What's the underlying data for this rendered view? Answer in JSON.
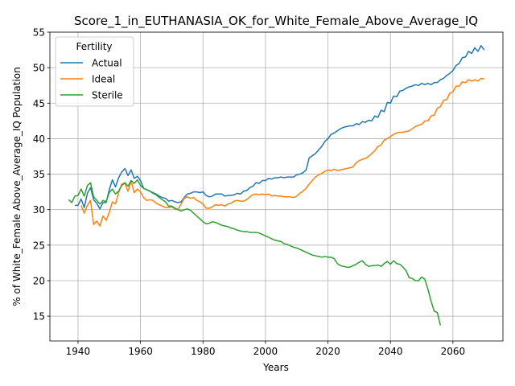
{
  "chart_data": {
    "type": "line",
    "title": "Score_1_in_EUTHANASIA_OK_for_White_Female_Above_Average_IQ",
    "xlabel": "Years",
    "ylabel": "% of White_Female Above_Average_IQ Population",
    "xlim": [
      1931,
      2076
    ],
    "ylim": [
      11.5,
      55
    ],
    "xticks": [
      1940,
      1960,
      1980,
      2000,
      2020,
      2040,
      2060
    ],
    "yticks": [
      15,
      20,
      25,
      30,
      35,
      40,
      45,
      50,
      55
    ],
    "grid": true,
    "legend": {
      "title": "Fertility",
      "placement": "upper-left"
    },
    "series": [
      {
        "name": "Actual",
        "color": "#1f77b4",
        "x": [
          1939,
          1940,
          1941,
          1942,
          1943,
          1944,
          1945,
          1946,
          1947,
          1948,
          1949,
          1950,
          1951,
          1952,
          1953,
          1954,
          1955,
          1956,
          1957,
          1958,
          1959,
          1960,
          1961,
          1962,
          1963,
          1964,
          1965,
          1966,
          1967,
          1968,
          1969,
          1970,
          1971,
          1972,
          1973,
          1974,
          1975,
          1976,
          1977,
          1978,
          1979,
          1980,
          1981,
          1982,
          1983,
          1984,
          1985,
          1986,
          1987,
          1988,
          1989,
          1990,
          1991,
          1992,
          1993,
          1994,
          1995,
          1996,
          1997,
          1998,
          1999,
          2000,
          2001,
          2002,
          2003,
          2004,
          2005,
          2006,
          2007,
          2008,
          2009,
          2010,
          2011,
          2012,
          2013,
          2014,
          2015,
          2016,
          2017,
          2018,
          2019,
          2020,
          2021,
          2022,
          2023,
          2024,
          2025,
          2026,
          2027,
          2028,
          2029,
          2030,
          2031,
          2032,
          2033,
          2034,
          2035,
          2036,
          2037,
          2038,
          2039,
          2040,
          2041,
          2042,
          2043,
          2044,
          2045,
          2046,
          2047,
          2048,
          2049,
          2050,
          2051,
          2052,
          2053,
          2054,
          2055,
          2056,
          2057,
          2058,
          2059,
          2060,
          2061,
          2062,
          2063,
          2064,
          2065,
          2066,
          2067,
          2068,
          2069,
          2070
        ],
        "values": [
          30.6,
          30.6,
          31.5,
          30.3,
          32.3,
          33.1,
          31.4,
          30.9,
          30.1,
          31.0,
          31.0,
          32.8,
          34.2,
          33.2,
          34.5,
          35.3,
          35.8,
          34.8,
          35.6,
          34.4,
          34.7,
          34.1,
          33.0,
          32.8,
          32.6,
          32.4,
          32.2,
          31.9,
          31.7,
          31.6,
          31.2,
          31.3,
          31.1,
          31.0,
          31.1,
          31.7,
          32.2,
          32.3,
          32.5,
          32.5,
          32.4,
          32.5,
          32.0,
          31.8,
          31.9,
          32.2,
          32.2,
          32.2,
          31.9,
          32.0,
          32.0,
          32.1,
          32.3,
          32.2,
          32.6,
          32.7,
          33.1,
          33.3,
          33.8,
          33.7,
          34.1,
          34.1,
          34.4,
          34.3,
          34.5,
          34.5,
          34.6,
          34.5,
          34.6,
          34.6,
          34.6,
          34.9,
          35.0,
          35.2,
          35.6,
          37.3,
          37.6,
          37.9,
          38.4,
          38.9,
          39.6,
          40.0,
          40.6,
          40.8,
          41.1,
          41.4,
          41.6,
          41.7,
          41.8,
          41.8,
          42.1,
          42.0,
          42.4,
          42.3,
          42.6,
          42.5,
          43.2,
          43.0,
          44.0,
          43.8,
          45.1,
          45.0,
          46.0,
          45.9,
          46.7,
          46.8,
          47.1,
          47.3,
          47.4,
          47.6,
          47.5,
          47.8,
          47.6,
          47.8,
          47.6,
          47.9,
          47.9,
          48.3,
          48.5,
          48.9,
          49.2,
          49.6,
          50.3,
          50.6,
          51.4,
          51.5,
          52.3,
          52.0,
          52.8,
          52.3,
          53.1,
          52.5
        ]
      },
      {
        "name": "Ideal",
        "color": "#ff7f0e",
        "x": [
          1941,
          1942,
          1943,
          1944,
          1945,
          1946,
          1947,
          1948,
          1949,
          1950,
          1951,
          1952,
          1953,
          1954,
          1955,
          1956,
          1957,
          1958,
          1959,
          1960,
          1961,
          1962,
          1963,
          1964,
          1965,
          1966,
          1967,
          1968,
          1969,
          1970,
          1971,
          1972,
          1973,
          1974,
          1975,
          1976,
          1977,
          1978,
          1979,
          1980,
          1981,
          1982,
          1983,
          1984,
          1985,
          1986,
          1987,
          1988,
          1989,
          1990,
          1991,
          1992,
          1993,
          1994,
          1995,
          1996,
          1997,
          1998,
          1999,
          2000,
          2001,
          2002,
          2003,
          2004,
          2005,
          2006,
          2007,
          2008,
          2009,
          2010,
          2011,
          2012,
          2013,
          2014,
          2015,
          2016,
          2017,
          2018,
          2019,
          2020,
          2021,
          2022,
          2023,
          2024,
          2025,
          2026,
          2027,
          2028,
          2029,
          2030,
          2031,
          2032,
          2033,
          2034,
          2035,
          2036,
          2037,
          2038,
          2039,
          2040,
          2041,
          2042,
          2043,
          2044,
          2045,
          2046,
          2047,
          2048,
          2049,
          2050,
          2051,
          2052,
          2053,
          2054,
          2055,
          2056,
          2057,
          2058,
          2059,
          2060,
          2061,
          2062,
          2063,
          2064,
          2065,
          2066,
          2067,
          2068,
          2069,
          2070
        ],
        "values": [
          30.6,
          29.5,
          30.6,
          31.3,
          27.9,
          28.4,
          27.7,
          29.1,
          28.5,
          29.6,
          31.1,
          30.8,
          32.4,
          33.6,
          33.7,
          32.6,
          34.0,
          32.4,
          32.9,
          32.5,
          31.7,
          31.3,
          31.4,
          31.3,
          30.9,
          30.7,
          30.5,
          30.3,
          30.3,
          30.4,
          30.1,
          30.0,
          30.8,
          31.6,
          31.8,
          31.6,
          31.7,
          31.3,
          31.1,
          30.8,
          30.2,
          30.2,
          30.4,
          30.7,
          30.6,
          30.7,
          30.5,
          30.8,
          30.9,
          31.2,
          31.3,
          31.2,
          31.2,
          31.4,
          31.8,
          32.1,
          32.2,
          32.1,
          32.2,
          32.1,
          32.2,
          31.9,
          32.0,
          31.9,
          31.9,
          31.8,
          31.8,
          31.8,
          31.7,
          31.9,
          32.3,
          32.6,
          33.0,
          33.6,
          34.1,
          34.6,
          34.9,
          35.1,
          35.4,
          35.6,
          35.5,
          35.7,
          35.5,
          35.6,
          35.7,
          35.8,
          35.9,
          36.0,
          36.6,
          36.9,
          37.1,
          37.2,
          37.5,
          37.9,
          38.3,
          38.9,
          39.1,
          39.8,
          40.0,
          40.3,
          40.6,
          40.8,
          40.9,
          40.9,
          41.0,
          41.1,
          41.4,
          41.7,
          41.9,
          42.0,
          42.5,
          42.5,
          43.2,
          43.3,
          44.3,
          44.5,
          45.4,
          45.5,
          46.4,
          46.6,
          47.4,
          47.4,
          48.0,
          47.9,
          48.3,
          48.1,
          48.3,
          48.1,
          48.5,
          48.4
        ]
      },
      {
        "name": "Sterile",
        "color": "#2ca02c",
        "x": [
          1937,
          1938,
          1939,
          1940,
          1941,
          1942,
          1943,
          1944,
          1945,
          1946,
          1947,
          1948,
          1949,
          1950,
          1951,
          1952,
          1953,
          1954,
          1955,
          1956,
          1957,
          1958,
          1959,
          1960,
          1961,
          1962,
          1963,
          1964,
          1965,
          1966,
          1967,
          1968,
          1969,
          1970,
          1971,
          1972,
          1973,
          1974,
          1975,
          1976,
          1977,
          1978,
          1979,
          1980,
          1981,
          1982,
          1983,
          1984,
          1985,
          1986,
          1987,
          1988,
          1989,
          1990,
          1991,
          1992,
          1993,
          1994,
          1995,
          1996,
          1997,
          1998,
          1999,
          2000,
          2001,
          2002,
          2003,
          2004,
          2005,
          2006,
          2007,
          2008,
          2009,
          2010,
          2011,
          2012,
          2013,
          2014,
          2015,
          2016,
          2017,
          2018,
          2019,
          2020,
          2021,
          2022,
          2023,
          2024,
          2025,
          2026,
          2027,
          2028,
          2029,
          2030,
          2031,
          2032,
          2033,
          2034,
          2035,
          2036,
          2037,
          2038,
          2039,
          2040,
          2041,
          2042,
          2043,
          2044,
          2045,
          2046,
          2047,
          2048,
          2049,
          2050,
          2051,
          2052,
          2053,
          2054,
          2055,
          2056
        ],
        "values": [
          31.4,
          31.0,
          31.9,
          32.0,
          32.9,
          31.9,
          33.4,
          33.8,
          31.8,
          31.3,
          30.8,
          31.3,
          31.1,
          32.4,
          32.9,
          32.2,
          32.6,
          33.4,
          33.8,
          33.3,
          34.1,
          33.7,
          34.2,
          33.4,
          33.0,
          32.8,
          32.6,
          32.3,
          32.1,
          31.7,
          31.4,
          31.1,
          30.5,
          30.5,
          30.2,
          30.0,
          29.8,
          30.0,
          30.1,
          29.9,
          29.5,
          29.1,
          28.7,
          28.3,
          28.0,
          28.1,
          28.3,
          28.2,
          28.0,
          27.8,
          27.7,
          27.6,
          27.4,
          27.3,
          27.1,
          27.0,
          26.9,
          26.9,
          26.8,
          26.8,
          26.8,
          26.7,
          26.5,
          26.3,
          26.1,
          25.9,
          25.7,
          25.6,
          25.5,
          25.2,
          25.1,
          24.9,
          24.7,
          24.6,
          24.4,
          24.2,
          24.0,
          23.8,
          23.6,
          23.5,
          23.4,
          23.3,
          23.4,
          23.3,
          23.3,
          23.1,
          22.4,
          22.1,
          22.0,
          21.9,
          21.9,
          22.1,
          22.3,
          22.6,
          22.8,
          22.3,
          22.0,
          22.1,
          22.1,
          22.2,
          22.0,
          22.4,
          22.7,
          22.3,
          22.8,
          22.4,
          22.3,
          21.9,
          21.4,
          20.4,
          20.3,
          20.0,
          20.0,
          20.5,
          20.2,
          18.8,
          17.1,
          15.7,
          15.5,
          13.7
        ]
      }
    ]
  }
}
